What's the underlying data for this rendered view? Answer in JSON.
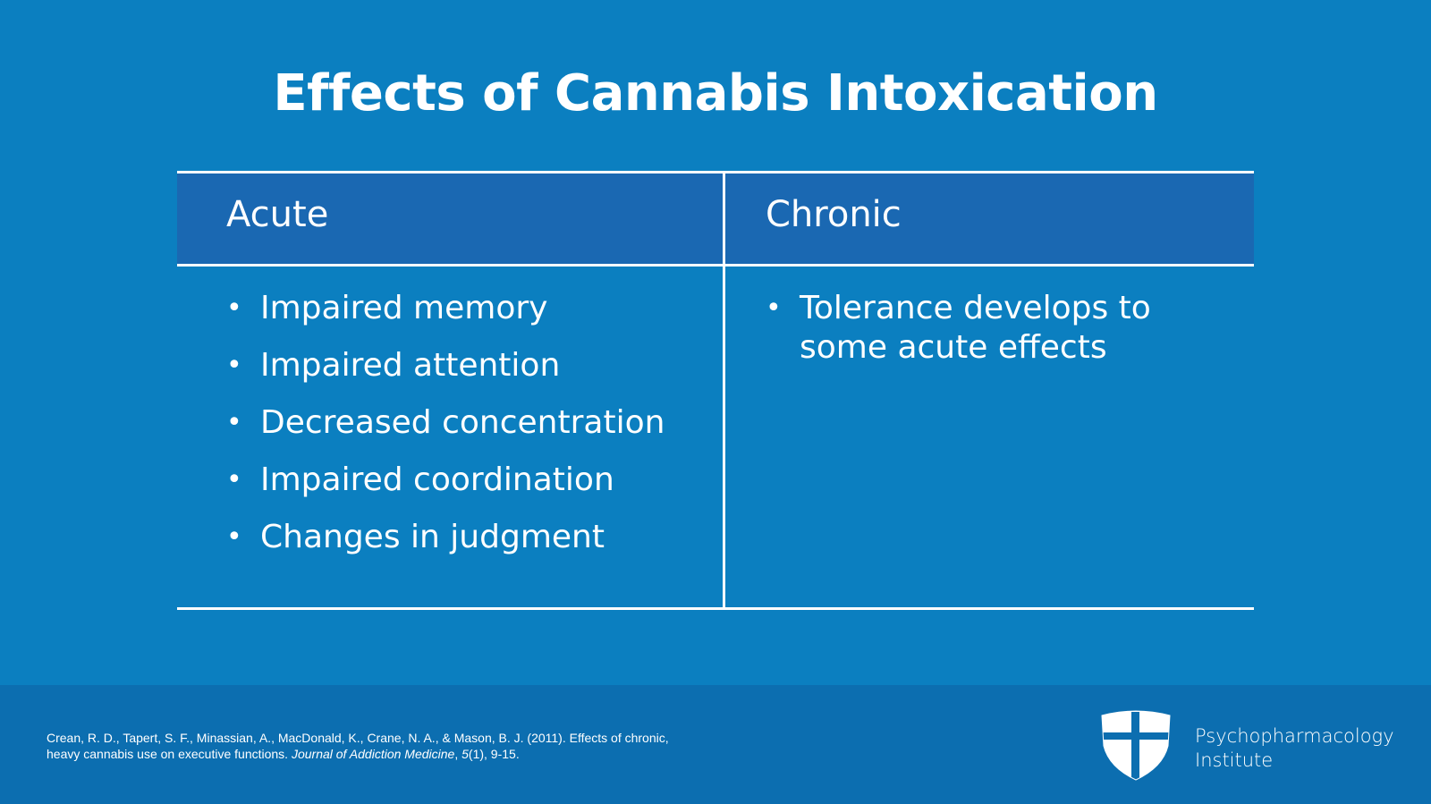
{
  "title": "Effects of Cannabis Intoxication",
  "table": {
    "columns": [
      {
        "heading": "Acute",
        "items": [
          "Impaired memory",
          "Impaired attention",
          "Decreased concentration",
          "Impaired coordination",
          "Changes in judgment"
        ]
      },
      {
        "heading": "Chronic",
        "items": [
          "Tolerance develops to some acute effects"
        ]
      }
    ]
  },
  "footer": {
    "citation_part1": "Crean, R. D., Tapert, S. F., Minassian, A., MacDonald, K., Crane, N. A., & Mason, B. J. (2011). Effects of chronic, heavy cannabis use on executive functions. ",
    "citation_journal": "Journal of Addiction Medicine",
    "citation_sep": ", ",
    "citation_volume": "5",
    "citation_part2": "(1), 9-15.",
    "brand_line1": "Psychopharmacology",
    "brand_line2": "Institute",
    "logo_icon": "shield-cross-icon"
  },
  "colors": {
    "background": "#0b7fc0",
    "header_band": "#1a68b2",
    "footer_band": "#0c6eb0",
    "text": "#ffffff"
  }
}
